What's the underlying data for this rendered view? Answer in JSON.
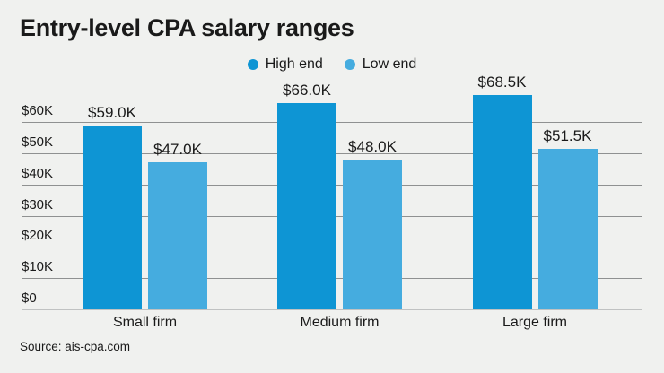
{
  "title": "Entry-level CPA salary ranges",
  "source": "Source: ais-cpa.com",
  "colors": {
    "background": "#f0f1ef",
    "text": "#1a1a1a",
    "gridline": "#8f9191",
    "baseline": "#c0c2c2",
    "high_end": "#0e95d4",
    "low_end": "#45acdf"
  },
  "chart_data": {
    "type": "bar",
    "title": "Entry-level CPA salary ranges",
    "categories": [
      "Small firm",
      "Medium firm",
      "Large firm"
    ],
    "series": [
      {
        "name": "High end",
        "color": "#0e95d4",
        "values": [
          59.0,
          66.0,
          68.5
        ],
        "labels": [
          "$59.0K",
          "$66.0K",
          "$68.5K"
        ]
      },
      {
        "name": "Low end",
        "color": "#45acdf",
        "values": [
          47.0,
          48.0,
          51.5
        ],
        "labels": [
          "$47.0K",
          "$48.0K",
          "$51.5K"
        ]
      }
    ],
    "xlabel": "",
    "ylabel": "",
    "unit": "USD thousands per year",
    "ylim": [
      0,
      70
    ],
    "yticks": [
      0,
      10,
      20,
      30,
      40,
      50,
      60
    ],
    "ytick_labels": [
      "$0",
      "$10K",
      "$20K",
      "$30K",
      "$40K",
      "$50K",
      "$60K"
    ],
    "grid": true,
    "legend_position": "top-center",
    "source": "Source: ais-cpa.com"
  }
}
